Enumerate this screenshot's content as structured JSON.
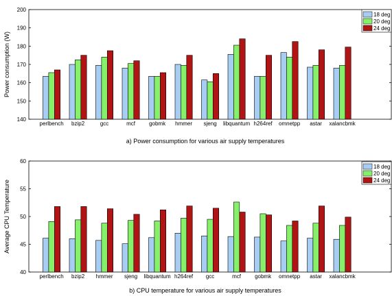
{
  "colors": {
    "18 deg": "#a8cdf2",
    "20 deg": "#86f06a",
    "24 deg": "#b01414"
  },
  "chart_data": [
    {
      "type": "bar",
      "caption": "a) Power consumption for various air supply temperatures",
      "ylabel": "Power consumption (W)",
      "xlabel": "",
      "ylim": [
        140,
        200
      ],
      "yticks": [
        140,
        150,
        160,
        170,
        180,
        190,
        200
      ],
      "grid": false,
      "legend_position": "top-right",
      "categories": [
        "perlbench",
        "bzip2",
        "gcc",
        "mcf",
        "gobmk",
        "hmmer",
        "sjeng",
        "libquantum",
        "h264ref",
        "omnetpp",
        "astar",
        "xalancbmk"
      ],
      "series": [
        {
          "name": "18 deg",
          "values": [
            163.5,
            170,
            169.5,
            168,
            163.5,
            170,
            161.5,
            175.5,
            163.5,
            176.5,
            168.5,
            168
          ]
        },
        {
          "name": "20 deg",
          "values": [
            165.5,
            172.5,
            174,
            170.5,
            163.5,
            169.5,
            160.5,
            180.5,
            163.5,
            174,
            169.5,
            169.5
          ]
        },
        {
          "name": "24 deg",
          "values": [
            167,
            175,
            177.5,
            172,
            165.5,
            175,
            165,
            184,
            175,
            182.5,
            178,
            179.5
          ]
        }
      ]
    },
    {
      "type": "bar",
      "caption": "b) CPU temperature for various air supply temperatures",
      "ylabel": "Average CPU Temperature",
      "xlabel": "",
      "ylim": [
        40,
        60
      ],
      "yticks": [
        40,
        45,
        50,
        55,
        60
      ],
      "grid": false,
      "legend_position": "top-right",
      "categories": [
        "perlbench",
        "bzip2",
        "hmmer",
        "sjeng",
        "libquantum",
        "h264ref",
        "gcc",
        "mcf",
        "gobmk",
        "omnetpp",
        "astar",
        "xalancbmk"
      ],
      "series": [
        {
          "name": "18 deg",
          "values": [
            46.1,
            46,
            45.7,
            45.1,
            46.2,
            47,
            46.5,
            46.4,
            46.3,
            45.6,
            46.1,
            45.9
          ]
        },
        {
          "name": "20 deg",
          "values": [
            49.1,
            49.4,
            48.8,
            49.3,
            49.2,
            49.7,
            49.5,
            52.6,
            50.5,
            48.4,
            48.8,
            48.4
          ]
        },
        {
          "name": "24 deg",
          "values": [
            51.8,
            51.8,
            51.4,
            50.4,
            51.2,
            51.9,
            51.5,
            50.8,
            50.3,
            49.2,
            51.9,
            49.9
          ]
        }
      ]
    }
  ]
}
